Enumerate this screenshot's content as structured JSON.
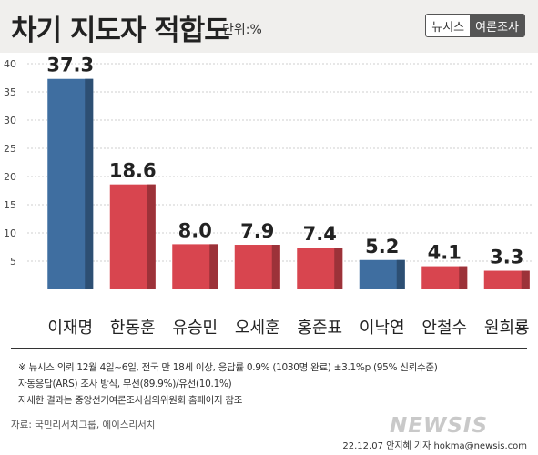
{
  "header": {
    "title": "차기 지도자 적합도",
    "unit": "단위:%",
    "brand_left": "뉴시스",
    "brand_right": "여론조사"
  },
  "chart_data": {
    "type": "bar",
    "categories": [
      "이재명",
      "한동훈",
      "유승민",
      "오세훈",
      "홍준표",
      "이낙연",
      "안철수",
      "원희룡"
    ],
    "values": [
      37.3,
      18.6,
      8.0,
      7.9,
      7.4,
      5.2,
      4.1,
      3.3
    ],
    "value_labels": [
      "37.3",
      "18.6",
      "8.0",
      "7.9",
      "7.4",
      "5.2",
      "4.1",
      "3.3"
    ],
    "bar_colors": [
      "#3f6ea0",
      "#d8454f",
      "#d8454f",
      "#d8454f",
      "#d8454f",
      "#3f6ea0",
      "#d8454f",
      "#d8454f"
    ],
    "ylim": [
      0,
      40
    ],
    "yticks": [
      5,
      10,
      15,
      20,
      25,
      30,
      35,
      40
    ],
    "ytick_labels": [
      "5",
      "10",
      "15",
      "20",
      "25",
      "30",
      "35",
      "40"
    ],
    "grid": true
  },
  "notes": [
    "※ 뉴시스 의뢰 12월 4일~6일, 전국 만 18세 이상, 응답률 0.9% (1030명 완료) ±3.1%p (95% 신뢰수준)",
    "자동응답(ARS) 조사 방식, 무선(89.9%)/유선(10.1%)",
    "자세한 결과는 중앙선거여론조사심의위원회 홈페이지 참조"
  ],
  "source": "자료: 국민리서치그룹, 에이스리서치",
  "logo": "NEWSIS",
  "credit": "22.12.07 안지혜 기자 hokma@newsis.com"
}
